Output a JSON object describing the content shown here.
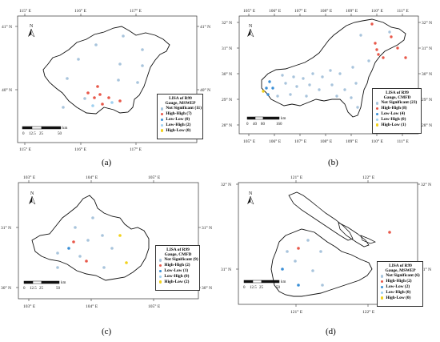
{
  "colors": {
    "not_significant": "#a8c4dc",
    "high_high": "#e8584a",
    "low_low": "#3a8fd6",
    "low_high": "#9ed0f0",
    "high_low": "#f2d21c"
  },
  "panels": [
    {
      "caption": "(a)",
      "north": "N",
      "lon_labels": [
        "115° E",
        "116° E",
        "117° E"
      ],
      "lat_labels": [
        "41° N",
        "40° N"
      ],
      "lat_labels_right": [
        "41° N",
        "40° N"
      ],
      "scale_labels": [
        "0",
        "12.5",
        "25",
        "50"
      ],
      "scale_unit": "km",
      "legend": {
        "title_lines": [
          "LISA of R99",
          "Gauge, MSWEP"
        ],
        "items": [
          {
            "label": "Not Significant (11)",
            "color": "#a8c4dc"
          },
          {
            "label": "High-High (7)",
            "color": "#e8584a"
          },
          {
            "label": "Low-Low (0)",
            "color": "#3a8fd6"
          },
          {
            "label": "Low-High (2)",
            "color": "#9ed0f0"
          },
          {
            "label": "High-Low (0)",
            "color": "#f2d21c"
          }
        ]
      }
    },
    {
      "caption": "(b)",
      "north": "N",
      "lon_labels": [
        "105° E",
        "106° E",
        "107° E",
        "108° E",
        "109° E",
        "110° E",
        "111° E"
      ],
      "lat_labels": [
        "32° N",
        "31° N",
        "30° N",
        "29° N",
        "28° N"
      ],
      "lat_labels_right": [
        "32° N",
        "31° N",
        "30° N",
        "29° N",
        "28° N"
      ],
      "scale_labels": [
        "0",
        "40",
        "80",
        "160"
      ],
      "scale_unit": "km",
      "legend": {
        "title_lines": [
          "LISA of R99",
          "Gauge, CMFD"
        ],
        "items": [
          {
            "label": "Not Significant (23)",
            "color": "#a8c4dc"
          },
          {
            "label": "High-High (8)",
            "color": "#e8584a"
          },
          {
            "label": "Low-Low (4)",
            "color": "#3a8fd6"
          },
          {
            "label": "Low-High (0)",
            "color": "#9ed0f0"
          },
          {
            "label": "High-Low (1)",
            "color": "#f2d21c"
          }
        ]
      }
    },
    {
      "caption": "(c)",
      "north": "N",
      "lon_labels": [
        "103° E",
        "104° E",
        "105° E"
      ],
      "lat_labels": [
        "31° N",
        "30° N"
      ],
      "lat_labels_right": [
        "31° N",
        "30° N"
      ],
      "scale_labels": [
        "0",
        "12.5",
        "25",
        "50"
      ],
      "scale_unit": "km",
      "legend": {
        "title_lines": [
          "LISA of R99",
          "Gauge, CMFD"
        ],
        "items": [
          {
            "label": "Not Significant (9)",
            "color": "#a8c4dc"
          },
          {
            "label": "High-High (2)",
            "color": "#e8584a"
          },
          {
            "label": "Low-Low (1)",
            "color": "#3a8fd6"
          },
          {
            "label": "Low-High (0)",
            "color": "#9ed0f0"
          },
          {
            "label": "High-Low (2)",
            "color": "#f2d21c"
          }
        ]
      }
    },
    {
      "caption": "(d)",
      "north": "N",
      "lon_labels": [
        "121° E",
        "122° E"
      ],
      "lat_labels": [
        "32° N",
        "31° N"
      ],
      "lat_labels_right": [
        "32° N",
        "31° N"
      ],
      "scale_labels": [
        "0",
        "12.5",
        "25",
        "50"
      ],
      "scale_unit": "km",
      "legend": {
        "title_lines": [
          "LISA of R99",
          "Gauge, MSWEP"
        ],
        "items": [
          {
            "label": "Not Significant (6)",
            "color": "#a8c4dc"
          },
          {
            "label": "High-High (2)",
            "color": "#e8584a"
          },
          {
            "label": "Low-Low (2)",
            "color": "#3a8fd6"
          },
          {
            "label": "Low-High (0)",
            "color": "#9ed0f0"
          },
          {
            "label": "High-Low (0)",
            "color": "#f2d21c"
          }
        ]
      }
    }
  ]
}
